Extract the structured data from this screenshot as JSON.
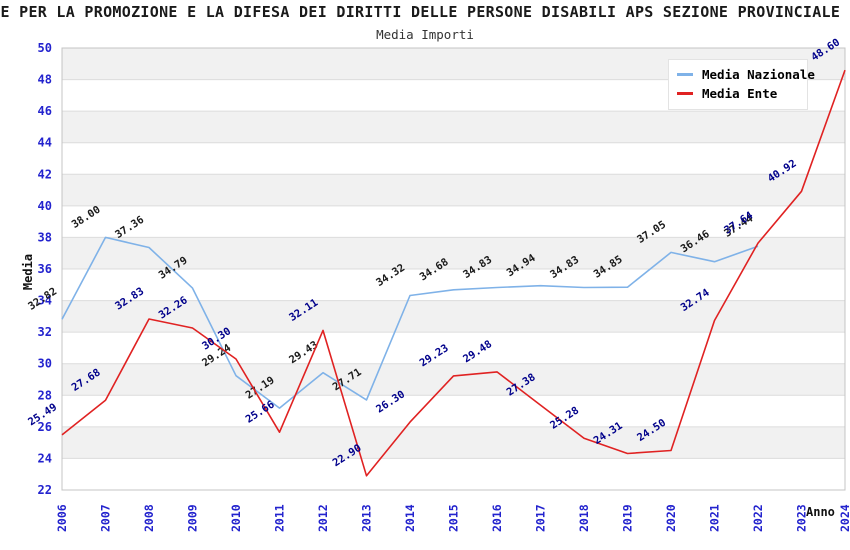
{
  "chart_data": {
    "type": "line",
    "title": "ALE PER LA PROMOZIONE E LA DIFESA DEI DIRITTI DELLE PERSONE DISABILI APS SEZIONE PROVINCIALE DI",
    "subtitle": "Media Importi",
    "xlabel": "Anno",
    "ylabel": "Media",
    "ylim": [
      22,
      50
    ],
    "ytick_step": 2,
    "grid": "horizontal-bands",
    "legend_position": "top-right",
    "axis_tick_color": "#2323CE",
    "axis_title_color": "#111111",
    "band_color": "#F1F1F1",
    "gridline_color": "#DCDCDC",
    "plot_border_color": "#C4C4C4",
    "x_ticks": [
      "2006",
      "2007",
      "2008",
      "2009",
      "2010",
      "2011",
      "2012",
      "2013",
      "2014",
      "2015",
      "2016",
      "2017",
      "2018",
      "2019",
      "2020",
      "2021",
      "2022",
      "2023",
      "2024"
    ],
    "series": [
      {
        "name": "Media Nazionale",
        "color": "#7FB2E8",
        "label_color": "#1a1a1a",
        "values": [
          32.82,
          38.0,
          37.36,
          34.79,
          29.24,
          27.19,
          29.43,
          27.71,
          34.32,
          34.68,
          34.83,
          34.94,
          34.83,
          34.85,
          37.05,
          36.46,
          37.44,
          null,
          null
        ]
      },
      {
        "name": "Media Ente",
        "color": "#E02222",
        "label_color": "#00008B",
        "values": [
          25.49,
          27.68,
          32.83,
          32.26,
          30.3,
          25.66,
          32.11,
          22.9,
          26.3,
          29.23,
          29.48,
          27.38,
          25.28,
          24.31,
          24.5,
          32.74,
          37.64,
          40.92,
          48.6
        ]
      }
    ]
  }
}
